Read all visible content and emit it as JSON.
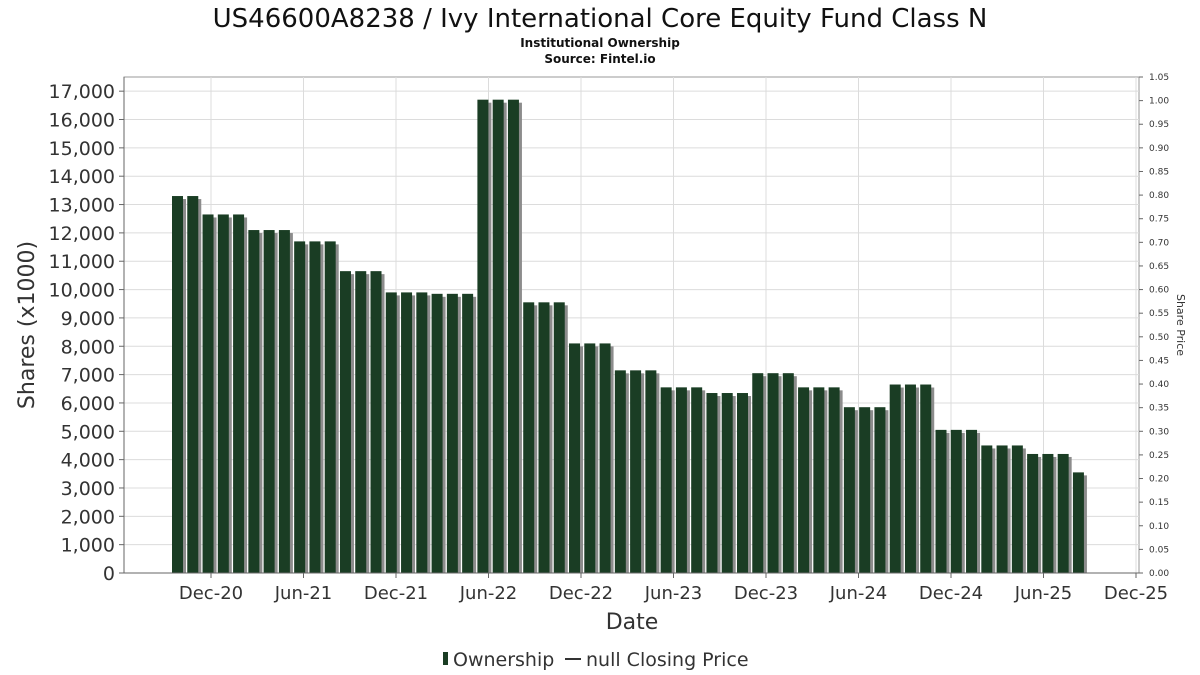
{
  "chart_data": {
    "type": "bar",
    "title": "US46600A8238 / Ivy International Core Equity Fund Class N",
    "subtitle": "Institutional Ownership",
    "source": "Source: Fintel.io",
    "xlabel": "Date",
    "ylabel": "Shares (x1000)",
    "y2label": "Share Price",
    "ylim": [
      0,
      17500
    ],
    "y2lim": [
      0,
      1.05
    ],
    "yticks": [
      "0",
      "1,000",
      "2,000",
      "3,000",
      "4,000",
      "5,000",
      "6,000",
      "7,000",
      "8,000",
      "9,000",
      "10,000",
      "11,000",
      "12,000",
      "13,000",
      "14,000",
      "15,000",
      "16,000",
      "17,000"
    ],
    "y2ticks": [
      "0.00",
      "0.05",
      "0.10",
      "0.15",
      "0.20",
      "0.25",
      "0.30",
      "0.35",
      "0.40",
      "0.45",
      "0.50",
      "0.55",
      "0.60",
      "0.65",
      "0.70",
      "0.75",
      "0.80",
      "0.85",
      "0.90",
      "0.95",
      "1.00",
      "1.05"
    ],
    "xticks": [
      "Dec-20",
      "Jun-21",
      "Dec-21",
      "Jun-22",
      "Dec-22",
      "Jun-23",
      "Dec-23",
      "Jun-24",
      "Dec-24",
      "Jun-25",
      "Dec-25"
    ],
    "grid": true,
    "legend_position": "bottom",
    "series": [
      {
        "name": "Ownership",
        "color": "#1a3d24",
        "values": [
          13300,
          13300,
          12650,
          12650,
          12650,
          12100,
          12100,
          12100,
          11700,
          11700,
          11700,
          10650,
          10650,
          10650,
          9900,
          9900,
          9900,
          9850,
          9850,
          9850,
          16700,
          16700,
          16700,
          9550,
          9550,
          9550,
          8100,
          8100,
          8100,
          7150,
          7150,
          7150,
          6550,
          6550,
          6550,
          6350,
          6350,
          6350,
          7050,
          7050,
          7050,
          6550,
          6550,
          6550,
          5850,
          5850,
          5850,
          6650,
          6650,
          6650,
          5050,
          5050,
          5050,
          4500,
          4500,
          4500,
          4200,
          4200,
          4200,
          3550
        ]
      }
    ],
    "legend": [
      {
        "label": "Ownership",
        "swatch": "bar",
        "color": "#1a3d24"
      },
      {
        "label": "null Closing Price",
        "swatch": "line",
        "color": "#333333"
      }
    ]
  }
}
